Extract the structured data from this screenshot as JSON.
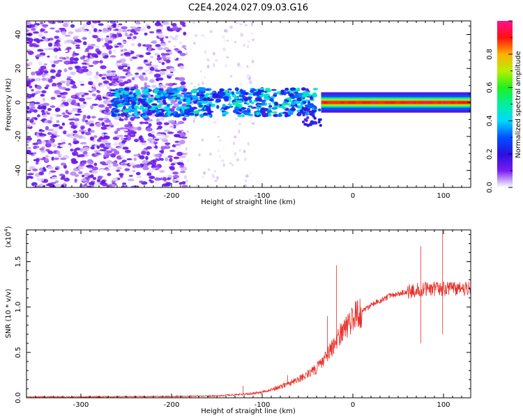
{
  "title": "C2E4.2024.027.09.03.G16",
  "chart_data": [
    {
      "type": "heatmap",
      "xlabel": "Height of straight line (km)",
      "ylabel": "Frequency (Hz)",
      "xlim": [
        -360,
        130
      ],
      "ylim": [
        -50,
        48
      ],
      "x_ticks": [
        "-300",
        "-200",
        "-100",
        "0",
        "100"
      ],
      "y_ticks": [
        "-40",
        "-20",
        "0",
        "20",
        "40"
      ],
      "colorbar": {
        "label": "Normalized spectral amplitude",
        "range": [
          0,
          1
        ],
        "ticks": [
          "0.0",
          "0.2",
          "0.4",
          "0.6",
          "0.8"
        ],
        "colormap": "rainbow (white-violet-blue-cyan-green-yellow-red-pink)"
      },
      "description_regions": [
        {
          "x_range": [
            -360,
            -185
          ],
          "freq_range": [
            -50,
            48
          ],
          "amplitude": [
            0.0,
            0.15
          ]
        },
        {
          "x_range": [
            -185,
            -110
          ],
          "freq_range": [
            -50,
            48
          ],
          "amplitude": [
            0.0,
            0.05
          ]
        },
        {
          "x_range": [
            -265,
            -40
          ],
          "freq_range": [
            -8,
            8
          ],
          "amplitude": [
            0.15,
            0.5
          ]
        },
        {
          "x_range": [
            -35,
            130
          ],
          "freq_range": [
            -1,
            1
          ],
          "amplitude": [
            0.8,
            1.0
          ]
        }
      ]
    },
    {
      "type": "line",
      "xlabel": "Height of straight line (km)",
      "ylabel": "SNR (10 * v/v)",
      "scale_label": "(x10",
      "scale_exp": "4",
      "scale_close": ")",
      "xlim": [
        -360,
        130
      ],
      "ylim": [
        0,
        1.85
      ],
      "x_ticks": [
        "-300",
        "-200",
        "-100",
        "0",
        "100"
      ],
      "y_ticks": [
        "0.0",
        "0.5",
        "1.0",
        "1.5"
      ],
      "color": "#e8302a",
      "series": [
        {
          "x": [
            -360,
            -300,
            -200,
            -150,
            -120,
            -100,
            -80,
            -60,
            -40,
            -30,
            -20,
            -10,
            0,
            20,
            40,
            60,
            80,
            100,
            130
          ],
          "y": [
            0.01,
            0.01,
            0.015,
            0.02,
            0.04,
            0.06,
            0.12,
            0.2,
            0.32,
            0.45,
            0.6,
            0.75,
            0.88,
            1.02,
            1.12,
            1.17,
            1.2,
            1.2,
            1.2
          ]
        }
      ],
      "spikes": [
        {
          "x": -121,
          "y": 0.13
        },
        {
          "x": -72,
          "y": 0.25
        },
        {
          "x": -28,
          "y": 0.9
        },
        {
          "x": -18,
          "y": 1.46
        },
        {
          "x": 75,
          "y": 1.67
        },
        {
          "x": 75,
          "y": 0.6
        },
        {
          "x": 99,
          "y": 1.85
        },
        {
          "x": 99,
          "y": 0.7
        }
      ]
    }
  ]
}
